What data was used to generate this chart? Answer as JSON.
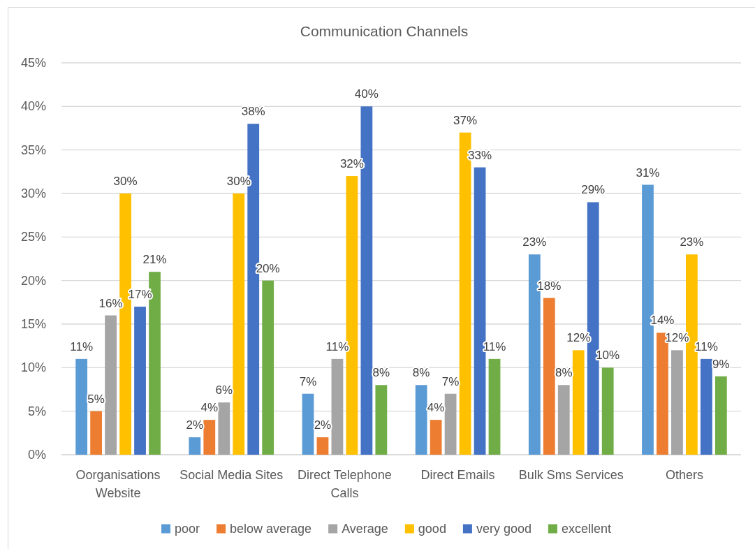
{
  "chart_data": {
    "type": "bar",
    "title": "Communication Channels",
    "categories": [
      "Oorganisations Website",
      "Social Media Sites",
      "Direct Telephone Calls",
      "Direct Emails",
      "Bulk Sms Services",
      "Others"
    ],
    "series": [
      {
        "name": "poor",
        "color": "#5b9bd5",
        "values": [
          11,
          2,
          7,
          8,
          23,
          31
        ],
        "value_labels": [
          "11%",
          "2%",
          "7%",
          "8%",
          "23%",
          "31%"
        ]
      },
      {
        "name": "below average",
        "color": "#ed7d31",
        "values": [
          5,
          4,
          2,
          4,
          18,
          14
        ],
        "value_labels": [
          "5%",
          "4%",
          "2%",
          "4%",
          "18%",
          "14%"
        ]
      },
      {
        "name": "Average",
        "color": "#a5a5a5",
        "values": [
          16,
          6,
          11,
          7,
          8,
          12
        ],
        "value_labels": [
          "16%",
          "6%",
          "11%",
          "7%",
          "8%",
          "12%"
        ]
      },
      {
        "name": "good",
        "color": "#ffc000",
        "values": [
          30,
          30,
          32,
          37,
          12,
          23
        ],
        "value_labels": [
          "30%",
          "30%",
          "32%",
          "37%",
          "12%",
          "23%"
        ]
      },
      {
        "name": "very good",
        "color": "#4472c4",
        "values": [
          17,
          38,
          40,
          33,
          29,
          11
        ],
        "value_labels": [
          "17%",
          "38%",
          "40%",
          "33%",
          "29%",
          "11%"
        ]
      },
      {
        "name": "excellent",
        "color": "#70ad47",
        "values": [
          21,
          20,
          8,
          11,
          10,
          9
        ],
        "value_labels": [
          "21%",
          "20%",
          "8%",
          "11%",
          "10%",
          "9%"
        ]
      }
    ],
    "ylim": [
      0,
      45
    ],
    "yticks": [
      {
        "value": 0,
        "label": "0%"
      },
      {
        "value": 5,
        "label": "5%"
      },
      {
        "value": 10,
        "label": "10%"
      },
      {
        "value": 15,
        "label": "15%"
      },
      {
        "value": 20,
        "label": "20%"
      },
      {
        "value": 25,
        "label": "25%"
      },
      {
        "value": 30,
        "label": "30%"
      },
      {
        "value": 35,
        "label": "35%"
      },
      {
        "value": 40,
        "label": "40%"
      },
      {
        "value": 45,
        "label": "45%"
      }
    ],
    "grid": "y",
    "legend": "bottom"
  }
}
